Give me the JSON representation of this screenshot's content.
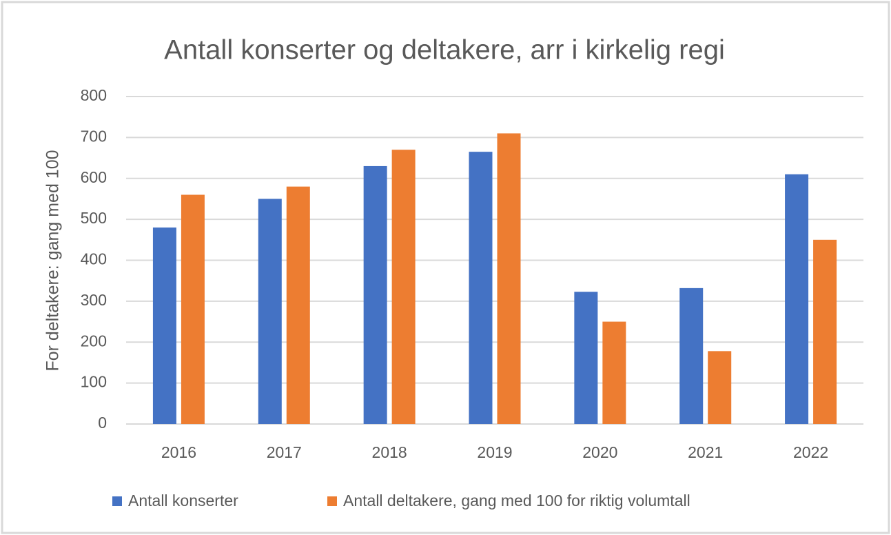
{
  "chart_data": {
    "type": "bar",
    "title": "Antall konserter og deltakere, arr i kirkelig regi",
    "y_label": "For deltakere: gang med 100",
    "categories": [
      "2016",
      "2017",
      "2018",
      "2019",
      "2020",
      "2021",
      "2022"
    ],
    "series": [
      {
        "name": "Antall konserter",
        "color": "#4472c4",
        "values": [
          480,
          550,
          630,
          665,
          323,
          332,
          610
        ]
      },
      {
        "name": "Antall deltakere, gang med 100 for riktig volumtall",
        "color": "#ed7d31",
        "values": [
          560,
          580,
          670,
          710,
          250,
          178,
          450
        ]
      }
    ],
    "ylim": [
      0,
      800
    ],
    "yticks": [
      0,
      100,
      200,
      300,
      400,
      500,
      600,
      700,
      800
    ],
    "grid": true,
    "legend": "bottom"
  }
}
